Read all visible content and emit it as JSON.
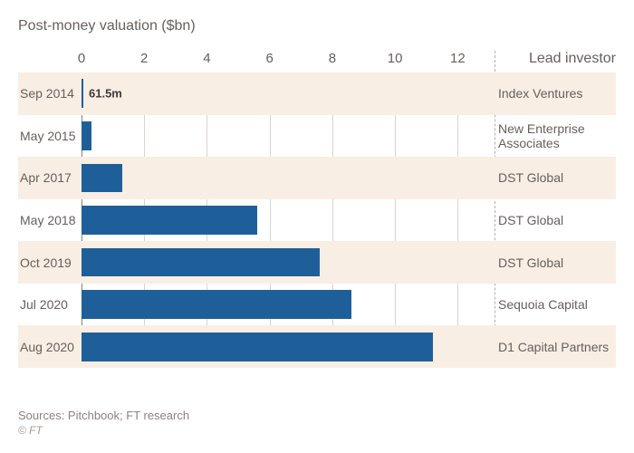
{
  "chart": {
    "type": "bar-horizontal",
    "subtitle": "Post-money valuation ($bn)",
    "right_header": "Lead investor",
    "background_color": "#ffffff",
    "band_color": "#f9eee3",
    "bar_color": "#1f5f99",
    "grid_color": "#d9d4cf",
    "zero_line_color": "#8a827c",
    "text_color": "#66605c",
    "xmax": 13.0,
    "xticks": [
      0,
      2,
      4,
      6,
      8,
      10,
      12
    ],
    "rows": [
      {
        "date": "Sep 2014",
        "value": 0.0615,
        "value_label": "61.5m",
        "investor": "Index Ventures",
        "banded": true
      },
      {
        "date": "May 2015",
        "value": 0.31,
        "value_label": "",
        "investor": "New Enterprise Associates",
        "banded": false
      },
      {
        "date": "Apr 2017",
        "value": 1.3,
        "value_label": "",
        "investor": "DST Global",
        "banded": true
      },
      {
        "date": "May 2018",
        "value": 5.6,
        "value_label": "",
        "investor": "DST Global",
        "banded": false
      },
      {
        "date": "Oct 2019",
        "value": 7.6,
        "value_label": "",
        "investor": "DST Global",
        "banded": true
      },
      {
        "date": "Jul 2020",
        "value": 8.6,
        "value_label": "",
        "investor": "Sequoia Capital",
        "banded": false
      },
      {
        "date": "Aug 2020",
        "value": 11.2,
        "value_label": "",
        "investor": "D1 Capital Partners",
        "banded": true
      }
    ],
    "source": "Sources: Pitchbook; FT research",
    "copyright": "© FT"
  }
}
